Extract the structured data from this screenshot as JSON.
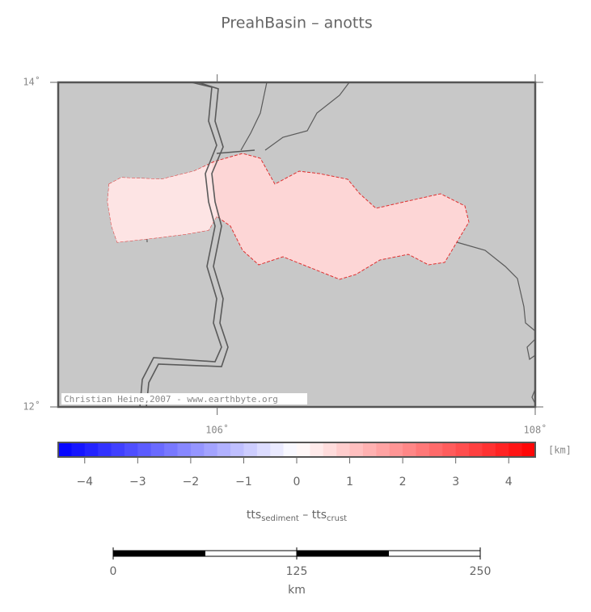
{
  "title": "PreahBasin – anotts",
  "map": {
    "lonlim": [
      105,
      108
    ],
    "latlim": [
      12,
      14
    ],
    "lon_ticks": [
      {
        "value": 106,
        "label": "106˚"
      },
      {
        "value": 108,
        "label": "108˚"
      }
    ],
    "lat_ticks": [
      {
        "value": 12,
        "label": "12˚"
      },
      {
        "value": 14,
        "label": "14˚"
      }
    ],
    "credit": "Christian Heine,2007 - www.earthbyte.org"
  },
  "colorbar": {
    "lim": [
      -4.5,
      4.5
    ],
    "ticks": [
      {
        "value": -4,
        "label": "−4"
      },
      {
        "value": -3,
        "label": "−3"
      },
      {
        "value": -2,
        "label": "−2"
      },
      {
        "value": -1,
        "label": "−1"
      },
      0,
      1,
      2,
      3,
      4
    ],
    "unit": "[km]",
    "colormap": [
      "#0000ff",
      "#ffffff",
      "#ff0000"
    ],
    "label": [
      {
        "text": "tts",
        "sub": "sediment"
      },
      {
        "text": " – tts",
        "sub": "crust"
      }
    ]
  },
  "scalebar": {
    "lim": [
      0,
      250
    ],
    "ticks": [
      0,
      125,
      250
    ],
    "unit": "km"
  }
}
